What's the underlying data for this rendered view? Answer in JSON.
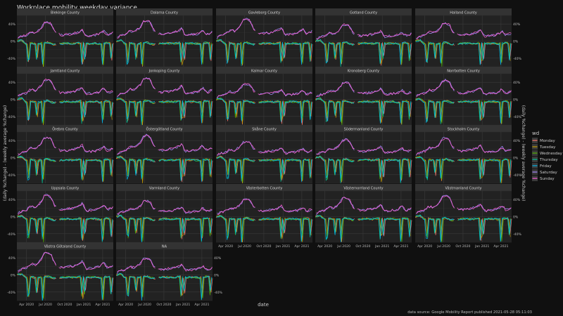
{
  "chart_data": {
    "type": "line",
    "title": "Workplace mobility weekday variance",
    "xlabel": "date",
    "ylabel_left": "(daily %change) - (weekly average %change)",
    "ylabel_right": "(daily %change) - (weekly average %change)",
    "caption": "data source: Google Mobility Report published 2021-05-28 05:11:03",
    "x_range": [
      "2020-02-15",
      "2021-05-22"
    ],
    "x_ticks": [
      "Apr 2020",
      "Jul 2020",
      "Oct 2020",
      "Jan 2021",
      "Apr 2021"
    ],
    "y_range": [
      -60,
      60
    ],
    "y_ticks": [
      "40%",
      "0%",
      "-40%"
    ],
    "grid": true,
    "legend": {
      "title": "wd",
      "position": "right",
      "entries": [
        {
          "label": "Monday",
          "color": "#F8766D"
        },
        {
          "label": "Tuesday",
          "color": "#C49A00"
        },
        {
          "label": "Wednesday",
          "color": "#53B400"
        },
        {
          "label": "Thursday",
          "color": "#00C094"
        },
        {
          "label": "Friday",
          "color": "#00B6EB"
        },
        {
          "label": "Saturday",
          "color": "#A58AFF"
        },
        {
          "label": "Sunday",
          "color": "#FB61D7"
        }
      ]
    },
    "panels": [
      {
        "name": "Blekinge County"
      },
      {
        "name": "Dalarna County"
      },
      {
        "name": "Gavleborg County"
      },
      {
        "name": "Gotland County"
      },
      {
        "name": "Halland County"
      },
      {
        "name": "Jamtland County"
      },
      {
        "name": "Jonkoping County"
      },
      {
        "name": "Kalmar County"
      },
      {
        "name": "Kronoberg County"
      },
      {
        "name": "Norrbotten County"
      },
      {
        "name": "Örebro County"
      },
      {
        "name": "Östergötland County"
      },
      {
        "name": "Skåne County"
      },
      {
        "name": "Södermanland County"
      },
      {
        "name": "Stockholm County"
      },
      {
        "name": "Uppsala County"
      },
      {
        "name": "Varmland County"
      },
      {
        "name": "Västerbotten County"
      },
      {
        "name": "Västernorrland County"
      },
      {
        "name": "Västmanland County"
      },
      {
        "name": "Västra Götaland County"
      },
      {
        "name": "NA"
      }
    ],
    "series_profile": {
      "weekday_level_pct": [
        {
          "x": "2020-02-15",
          "y": 0
        },
        {
          "x": "2020-03-10",
          "y": 2
        },
        {
          "x": "2020-04-01",
          "y": -8
        },
        {
          "x": "2020-04-15",
          "y": -4
        },
        {
          "x": "2020-05-20",
          "y": -7
        },
        {
          "x": "2020-06-20",
          "y": -5
        },
        {
          "x": "2020-07-10",
          "y": -3
        },
        {
          "x": "2020-08-10",
          "y": -8
        },
        {
          "x": "2020-09-15",
          "y": -6
        },
        {
          "x": "2020-10-15",
          "y": -5
        },
        {
          "x": "2020-11-15",
          "y": -6
        },
        {
          "x": "2020-12-20",
          "y": -4
        },
        {
          "x": "2021-01-20",
          "y": -6
        },
        {
          "x": "2021-02-20",
          "y": -5
        },
        {
          "x": "2021-03-20",
          "y": -7
        },
        {
          "x": "2021-04-20",
          "y": -4
        },
        {
          "x": "2021-05-22",
          "y": -6
        }
      ],
      "weekend_level_pct": [
        {
          "x": "2020-02-15",
          "y": 5
        },
        {
          "x": "2020-03-10",
          "y": 12
        },
        {
          "x": "2020-04-01",
          "y": 14
        },
        {
          "x": "2020-04-20",
          "y": 22
        },
        {
          "x": "2020-05-15",
          "y": 20
        },
        {
          "x": "2020-06-10",
          "y": 30
        },
        {
          "x": "2020-06-25",
          "y": 42
        },
        {
          "x": "2020-07-10",
          "y": 45
        },
        {
          "x": "2020-07-28",
          "y": 40
        },
        {
          "x": "2020-08-15",
          "y": 22
        },
        {
          "x": "2020-09-15",
          "y": 14
        },
        {
          "x": "2020-10-15",
          "y": 16
        },
        {
          "x": "2020-11-15",
          "y": 18
        },
        {
          "x": "2020-12-10",
          "y": 22
        },
        {
          "x": "2020-12-26",
          "y": 28
        },
        {
          "x": "2021-01-10",
          "y": 12
        },
        {
          "x": "2021-02-15",
          "y": 14
        },
        {
          "x": "2021-03-15",
          "y": 16
        },
        {
          "x": "2021-04-05",
          "y": 24
        },
        {
          "x": "2021-04-25",
          "y": 14
        },
        {
          "x": "2021-05-22",
          "y": 20
        }
      ],
      "holiday_dips_pct": [
        {
          "x": "2020-04-10",
          "y": -48
        },
        {
          "x": "2020-04-13",
          "y": -45
        },
        {
          "x": "2020-05-21",
          "y": -38
        },
        {
          "x": "2020-06-19",
          "y": -55
        },
        {
          "x": "2020-12-24",
          "y": -50
        },
        {
          "x": "2021-01-06",
          "y": -40
        },
        {
          "x": "2021-04-02",
          "y": -52
        },
        {
          "x": "2021-05-13",
          "y": -42
        }
      ]
    }
  }
}
